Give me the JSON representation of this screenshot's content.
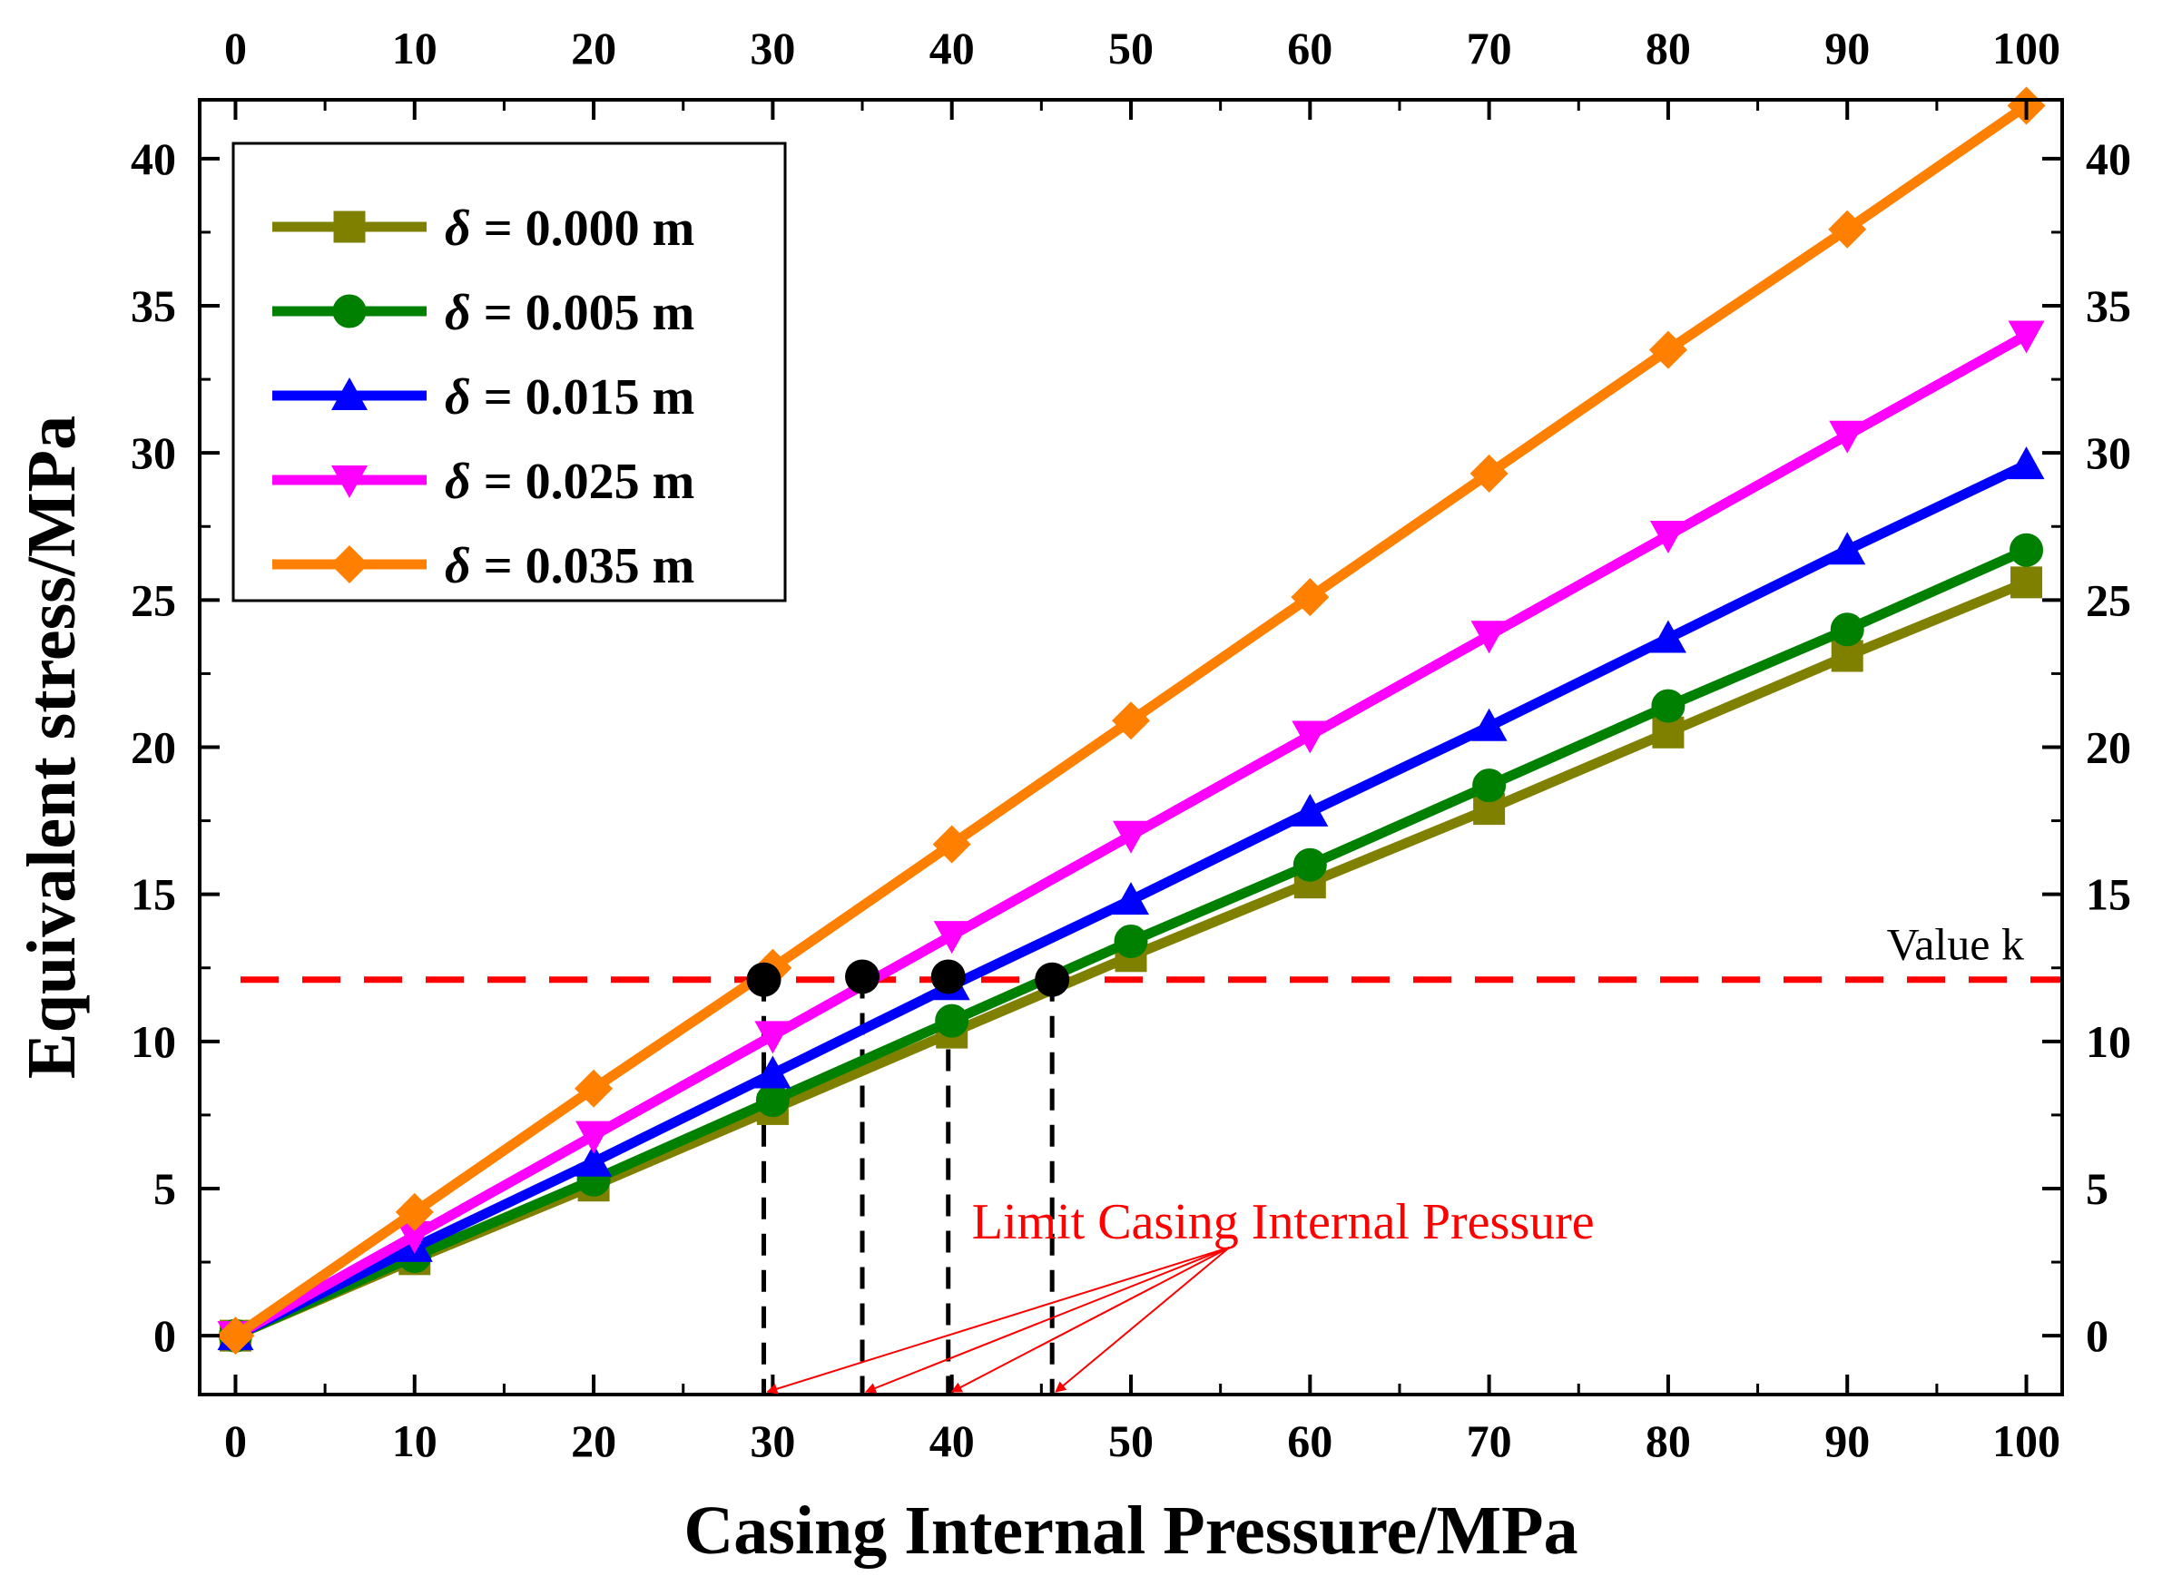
{
  "chart_data": {
    "type": "line",
    "title": "",
    "xlabel": "Casing Internal Pressure/MPa",
    "ylabel": "Equivalent stress/MPa",
    "xlim": [
      -2,
      102
    ],
    "ylim": [
      -2,
      42
    ],
    "x_ticks": [
      0,
      10,
      20,
      30,
      40,
      50,
      60,
      70,
      80,
      90,
      100
    ],
    "x_tick_labels": [
      "0",
      "10",
      "20",
      "30",
      "40",
      "50",
      "60",
      "70",
      "80",
      "90",
      "100"
    ],
    "y_ticks": [
      0,
      5,
      10,
      15,
      20,
      25,
      30,
      35,
      40
    ],
    "y_tick_labels": [
      "0",
      "5",
      "10",
      "15",
      "20",
      "25",
      "30",
      "35",
      "40"
    ],
    "top_axis_mirrors_x": true,
    "right_axis_mirrors_y": true,
    "grid": false,
    "legend_position": "top-left",
    "x": [
      0,
      10,
      20,
      30,
      40,
      50,
      60,
      70,
      80,
      90,
      100
    ],
    "series": [
      {
        "name": "δ = 0.000 m",
        "delta_symbol": "δ",
        "delta_value": "= 0.000 m",
        "color": "#808000",
        "marker": "square",
        "values": [
          0,
          2.6,
          5.1,
          7.7,
          10.3,
          12.9,
          15.4,
          17.9,
          20.5,
          23.1,
          25.6
        ]
      },
      {
        "name": "δ = 0.005 m",
        "delta_symbol": "δ",
        "delta_value": "= 0.005 m",
        "color": "#008000",
        "marker": "circle",
        "values": [
          0,
          2.7,
          5.3,
          8.0,
          10.7,
          13.4,
          16.0,
          18.7,
          21.4,
          24.0,
          26.7
        ]
      },
      {
        "name": "δ = 0.015 m",
        "delta_symbol": "δ",
        "delta_value": "= 0.015 m",
        "color": "#0000ff",
        "marker": "triangle-up",
        "values": [
          0,
          3.0,
          5.9,
          8.9,
          11.9,
          14.8,
          17.8,
          20.7,
          23.7,
          26.7,
          29.6
        ]
      },
      {
        "name": "δ = 0.025 m",
        "delta_symbol": "δ",
        "delta_value": "= 0.025 m",
        "color": "#ff00ff",
        "marker": "triangle-down",
        "values": [
          0,
          3.4,
          6.8,
          10.2,
          13.6,
          17.0,
          20.4,
          23.8,
          27.2,
          30.6,
          34.0
        ]
      },
      {
        "name": "δ = 0.035 m",
        "delta_symbol": "δ",
        "delta_value": "= 0.035 m",
        "color": "#ff8000",
        "marker": "diamond",
        "values": [
          0,
          4.2,
          8.4,
          12.5,
          16.7,
          20.9,
          25.1,
          29.3,
          33.5,
          37.6,
          41.8
        ]
      }
    ],
    "reference_line": {
      "label": "Value k",
      "y": 12.1,
      "color": "#ff0000",
      "style": "dashed"
    },
    "intersection_points": [
      {
        "x": 29.5,
        "y": 12.1
      },
      {
        "x": 35.0,
        "y": 12.2
      },
      {
        "x": 39.8,
        "y": 12.2
      },
      {
        "x": 45.6,
        "y": 12.1
      }
    ],
    "annotation": {
      "text": "Limit Casing Internal Pressure",
      "color": "#ff0000",
      "anchor_data": [
        58.5,
        3.3
      ],
      "points_to_x": [
        29.5,
        35.0,
        39.8,
        45.6
      ]
    }
  }
}
